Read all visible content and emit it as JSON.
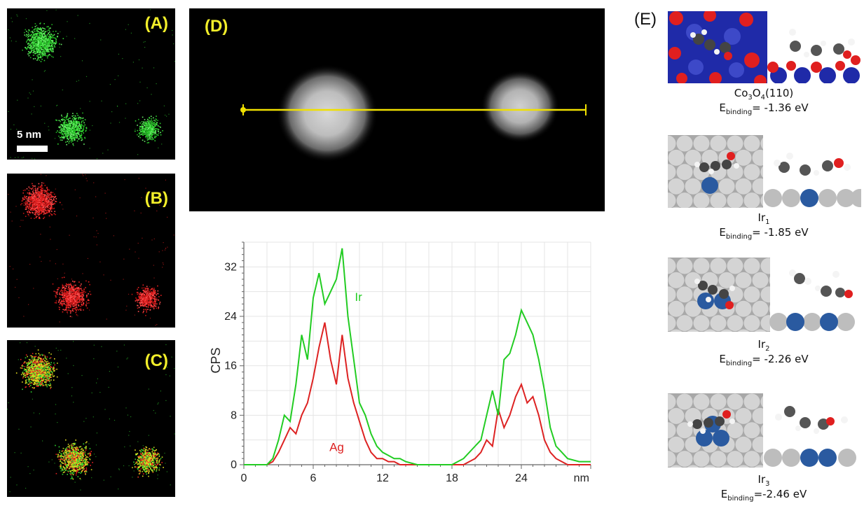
{
  "panels": {
    "a": {
      "letter": "(A)",
      "scale_label": "5 nm",
      "color": "#2fd22f"
    },
    "b": {
      "letter": "(B)",
      "color": "#e52020"
    },
    "c": {
      "letter": "(C)"
    },
    "d": {
      "letter": "(D)"
    },
    "e": {
      "letter": "(E)"
    }
  },
  "chart_data": {
    "type": "line",
    "title": "",
    "xlabel": "nm",
    "ylabel": "CPS",
    "xlim": [
      0,
      30
    ],
    "ylim": [
      0,
      36
    ],
    "x_ticks": [
      "0",
      "6",
      "12",
      "18",
      "24"
    ],
    "y_ticks": [
      "0",
      "8",
      "16",
      "24",
      "32"
    ],
    "grid": true,
    "series": [
      {
        "name": "Ir",
        "color": "#22cc22",
        "x": [
          0,
          1,
          2,
          2.5,
          3,
          3.5,
          4,
          4.5,
          5,
          5.5,
          6,
          6.5,
          7,
          7.5,
          8,
          8.5,
          9,
          9.5,
          10,
          10.5,
          11,
          11.5,
          12,
          12.5,
          13,
          13.5,
          14,
          15,
          16,
          17,
          18,
          19,
          20,
          20.5,
          21,
          21.5,
          22,
          22.5,
          23,
          23.5,
          24,
          24.5,
          25,
          25.5,
          26,
          26.5,
          27,
          27.5,
          28,
          29,
          30
        ],
        "values": [
          0,
          0,
          0,
          1,
          4,
          8,
          7,
          13,
          21,
          17,
          27,
          31,
          26,
          28,
          30,
          35,
          24,
          17,
          10,
          8,
          5,
          3,
          2,
          1.5,
          1,
          1,
          0.5,
          0,
          0,
          0,
          0,
          1,
          3,
          4,
          8,
          12,
          8,
          17,
          18,
          21,
          25,
          23,
          21,
          17,
          12,
          6,
          3,
          2,
          1,
          0.5,
          0.5
        ]
      },
      {
        "name": "Ag",
        "color": "#dd2222",
        "x": [
          0,
          1,
          2,
          2.5,
          3,
          3.5,
          4,
          4.5,
          5,
          5.5,
          6,
          6.5,
          7,
          7.5,
          8,
          8.5,
          9,
          9.5,
          10,
          10.5,
          11,
          11.5,
          12,
          12.5,
          13,
          13.5,
          14,
          15,
          16,
          17,
          18,
          19,
          20,
          20.5,
          21,
          21.5,
          22,
          22.5,
          23,
          23.5,
          24,
          24.5,
          25,
          25.5,
          26,
          26.5,
          27,
          27.5,
          28,
          29,
          30
        ],
        "values": [
          0,
          0,
          0,
          0.5,
          2,
          4,
          6,
          5,
          8,
          10,
          14,
          19,
          23,
          17,
          13,
          21,
          14,
          10,
          7,
          4,
          2,
          1,
          1,
          0.5,
          0.5,
          0,
          0,
          0,
          0,
          0,
          0,
          0,
          1,
          2,
          4,
          3,
          9,
          6,
          8,
          11,
          13,
          10,
          11,
          8,
          4,
          2,
          1,
          0.5,
          0,
          0,
          0
        ]
      }
    ],
    "series_labels": [
      {
        "text": "Ir",
        "color": "#22cc22"
      },
      {
        "text": "Ag",
        "color": "#dd2222"
      }
    ]
  },
  "structures": [
    {
      "name_main": "Co",
      "s1": "3",
      "name_mid": "O",
      "s2": "4",
      "name_tail": "(110)",
      "e_prefix": "E",
      "e_sub": "binding",
      "e_value": "= -1.36 eV"
    },
    {
      "name_main": "Ir",
      "s1": "1",
      "e_prefix": "E",
      "e_sub": "binding",
      "e_value": "= -1.85 eV"
    },
    {
      "name_main": "Ir",
      "s1": "2",
      "e_prefix": "E",
      "e_sub": "binding",
      "e_value": "= -2.26 eV"
    },
    {
      "name_main": "Ir",
      "s1": "3",
      "e_prefix": "E",
      "e_sub": "binding",
      "e_value": "=-2.46 eV"
    }
  ]
}
